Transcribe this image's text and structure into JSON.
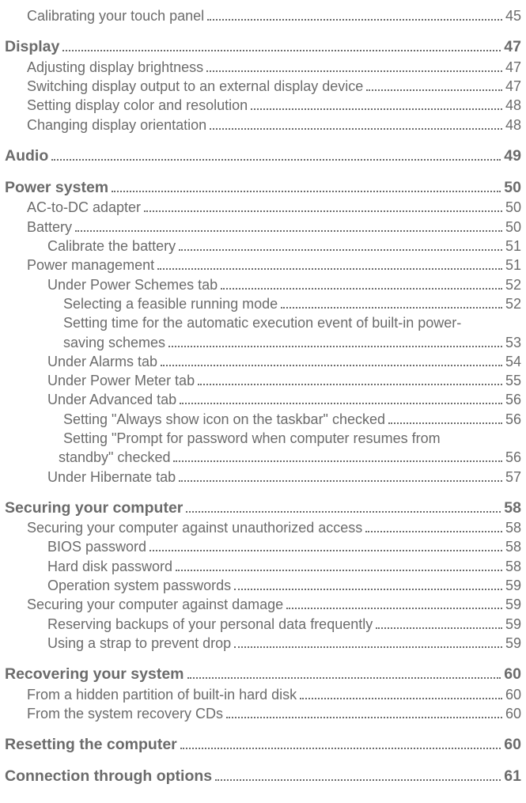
{
  "toc": [
    {
      "label": "Calibrating your touch panel",
      "page": "45",
      "cls": "level-1 first",
      "dots": true
    },
    {
      "label": "Display",
      "page": "47",
      "cls": "section-title",
      "dots": true
    },
    {
      "label": "Adjusting display brightness",
      "page": "47",
      "cls": "level-1",
      "dots": true
    },
    {
      "label": "Switching display output to an external display device",
      "page": "47",
      "cls": "level-1",
      "dots": true
    },
    {
      "label": "Setting display color and resolution",
      "page": "48",
      "cls": "level-1",
      "dots": true
    },
    {
      "label": "Changing display orientation",
      "page": "48",
      "cls": "level-1",
      "dots": true
    },
    {
      "label": "Audio",
      "page": "49",
      "cls": "section-title",
      "dots": true
    },
    {
      "label": "Power system",
      "page": "50",
      "cls": "section-title",
      "dots": true
    },
    {
      "label": "AC-to-DC adapter",
      "page": "50",
      "cls": "level-1",
      "dots": true
    },
    {
      "label": "Battery",
      "page": "50",
      "cls": "level-1",
      "dots": true
    },
    {
      "label": "Calibrate the battery",
      "page": "51",
      "cls": "level-2",
      "dots": true
    },
    {
      "label": "Power management",
      "page": "51",
      "cls": "level-1",
      "dots": true
    },
    {
      "label": "Under Power Schemes tab",
      "page": "52",
      "cls": "level-2",
      "dots": true
    },
    {
      "label": "Selecting a feasible running mode",
      "page": "52",
      "cls": "level-3",
      "dots": true
    },
    {
      "label": "Setting time for the automatic execution event of built-in power-",
      "page": "",
      "cls": "level-3 wrap-line",
      "dots": false
    },
    {
      "label": "saving schemes",
      "page": "53",
      "cls": "level-3",
      "dots": true
    },
    {
      "label": "Under Alarms tab",
      "page": "54",
      "cls": "level-2",
      "dots": true
    },
    {
      "label": "Under Power Meter tab",
      "page": "55",
      "cls": "level-2",
      "dots": true
    },
    {
      "label": "Under Advanced tab",
      "page": "56",
      "cls": "level-2",
      "dots": true
    },
    {
      "label": "Setting \"Always show icon on the taskbar\" checked",
      "page": "56",
      "cls": "level-3",
      "dots": true
    },
    {
      "label": "Setting \"Prompt for password when computer resumes from",
      "page": "",
      "cls": "level-3 wrap-line",
      "dots": false
    },
    {
      "label": "standby\" checked",
      "page": "56",
      "cls": "cont-3",
      "dots": true
    },
    {
      "label": "Under Hibernate tab",
      "page": "57",
      "cls": "level-2",
      "dots": true
    },
    {
      "label": "Securing your computer",
      "page": "58",
      "cls": "section-title",
      "dots": true
    },
    {
      "label": "Securing your computer against unauthorized access",
      "page": "58",
      "cls": "level-1",
      "dots": true
    },
    {
      "label": "BIOS password",
      "page": "58",
      "cls": "level-2",
      "dots": true
    },
    {
      "label": "Hard disk password",
      "page": "58",
      "cls": "level-2",
      "dots": true
    },
    {
      "label": "Operation system passwords",
      "page": "59",
      "cls": "level-2",
      "dots": true
    },
    {
      "label": "Securing your computer against damage",
      "page": "59",
      "cls": "level-1",
      "dots": true
    },
    {
      "label": "Reserving backups of your personal data frequently",
      "page": "59",
      "cls": "level-2",
      "dots": true
    },
    {
      "label": "Using a strap to prevent drop",
      "page": "59",
      "cls": "level-2",
      "dots": true
    },
    {
      "label": "Recovering your system",
      "page": "60",
      "cls": "section-title",
      "dots": true
    },
    {
      "label": "From a hidden partition of built-in hard disk",
      "page": "60",
      "cls": "level-1",
      "dots": true
    },
    {
      "label": "From the system recovery CDs",
      "page": "60",
      "cls": "level-1",
      "dots": true
    },
    {
      "label": "Resetting the computer",
      "page": "60",
      "cls": "section-title",
      "dots": true
    },
    {
      "label": "Connection through options",
      "page": "61",
      "cls": "section-title",
      "dots": true
    }
  ]
}
